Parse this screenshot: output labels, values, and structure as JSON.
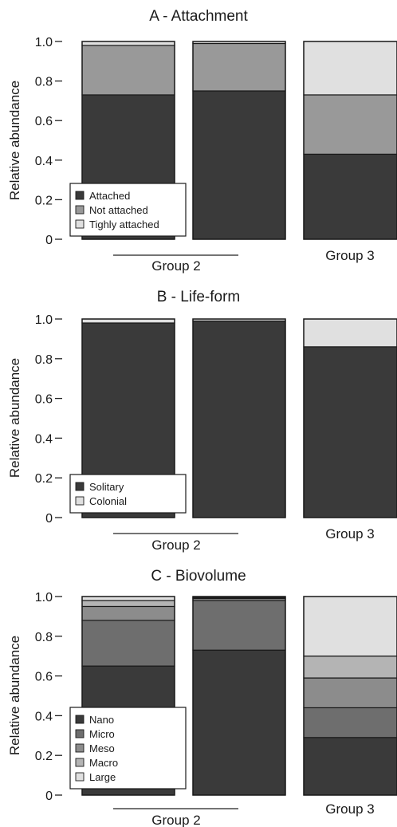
{
  "chart_data": [
    {
      "type": "bar",
      "stacked": true,
      "title": "A - Attachment",
      "ylabel": "Relative abundance",
      "ylim": [
        0,
        1
      ],
      "yticks": [
        "0",
        "0.2",
        "0.4",
        "0.6",
        "0.8",
        "1.0"
      ],
      "group_labels": [
        "Group 2",
        "Group 3"
      ],
      "bar_groups": [
        1,
        1,
        2
      ],
      "legend_position": "bottom-left",
      "series": [
        {
          "name": "Attached",
          "color": "#3a3a3a",
          "values": [
            0.73,
            0.75,
            0.43
          ]
        },
        {
          "name": "Not attached",
          "color": "#999999",
          "values": [
            0.25,
            0.24,
            0.3
          ]
        },
        {
          "name": "Tighly attached",
          "color": "#e0e0e0",
          "values": [
            0.02,
            0.01,
            0.27
          ]
        }
      ]
    },
    {
      "type": "bar",
      "stacked": true,
      "title": "B - Life-form",
      "ylabel": "Relative abundance",
      "ylim": [
        0,
        1
      ],
      "yticks": [
        "0",
        "0.2",
        "0.4",
        "0.6",
        "0.8",
        "1.0"
      ],
      "group_labels": [
        "Group 2",
        "Group 3"
      ],
      "bar_groups": [
        1,
        1,
        2
      ],
      "legend_position": "bottom-left",
      "series": [
        {
          "name": "Solitary",
          "color": "#3a3a3a",
          "values": [
            0.98,
            0.99,
            0.86
          ]
        },
        {
          "name": "Colonial",
          "color": "#e0e0e0",
          "values": [
            0.02,
            0.01,
            0.14
          ]
        }
      ]
    },
    {
      "type": "bar",
      "stacked": true,
      "title": "C - Biovolume",
      "ylabel": "Relative abundance",
      "ylim": [
        0,
        1
      ],
      "yticks": [
        "0",
        "0.2",
        "0.4",
        "0.6",
        "0.8",
        "1.0"
      ],
      "group_labels": [
        "Group 2",
        "Group 3"
      ],
      "bar_groups": [
        1,
        1,
        2
      ],
      "legend_position": "bottom-left",
      "series": [
        {
          "name": "Nano",
          "color": "#3a3a3a",
          "values": [
            0.65,
            0.73,
            0.29
          ]
        },
        {
          "name": "Micro",
          "color": "#6e6e6e",
          "values": [
            0.23,
            0.25,
            0.15
          ]
        },
        {
          "name": "Meso",
          "color": "#8c8c8c",
          "values": [
            0.07,
            0.01,
            0.15
          ]
        },
        {
          "name": "Macro",
          "color": "#b4b4b4",
          "values": [
            0.03,
            0.005,
            0.11
          ]
        },
        {
          "name": "Large",
          "color": "#e0e0e0",
          "values": [
            0.02,
            0.005,
            0.3
          ]
        }
      ]
    }
  ]
}
